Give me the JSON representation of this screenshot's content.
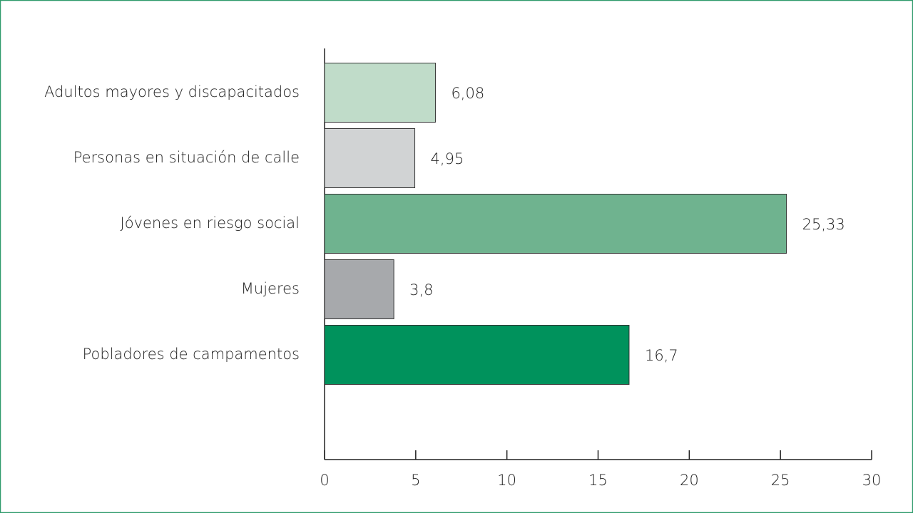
{
  "chart_data": {
    "type": "bar",
    "orientation": "horizontal",
    "categories": [
      "Adultos mayores y discapacitados",
      "Personas en situación de calle",
      "Jóvenes en riesgo social",
      "Mujeres",
      "Pobladores de campamentos"
    ],
    "values": [
      6.08,
      4.95,
      25.33,
      3.8,
      16.7
    ],
    "value_labels": [
      "6,08",
      "4,95",
      "25,33",
      "3,8",
      "16,7"
    ],
    "colors": [
      "#c0dcc9",
      "#d1d3d4",
      "#6fb38f",
      "#a7a9ac",
      "#00925c"
    ],
    "xlim": [
      0,
      30
    ],
    "xticks": [
      0,
      5,
      10,
      15,
      20,
      25,
      30
    ],
    "grid": false
  }
}
